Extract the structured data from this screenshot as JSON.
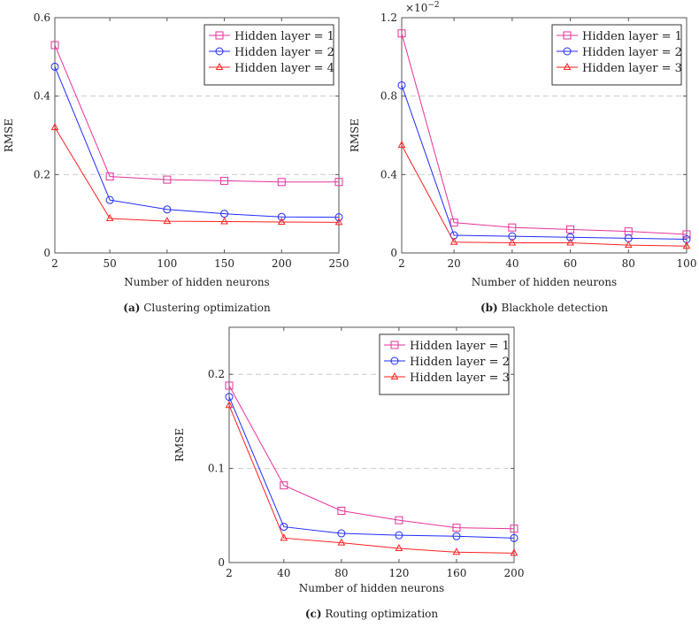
{
  "chart_data": [
    {
      "type": "line",
      "caption_label": "(a)",
      "caption": "Clustering optimization",
      "xlabel": "Number of hidden neurons",
      "ylabel": "RMSE",
      "x": [
        2,
        50,
        100,
        150,
        200,
        250
      ],
      "xticks": [
        "2",
        "50",
        "100",
        "150",
        "200",
        "250"
      ],
      "xlim": [
        2,
        250
      ],
      "yticks": [
        "0",
        "0.2",
        "0.4",
        "0.6"
      ],
      "ytick_values": [
        0,
        0.2,
        0.4,
        0.6
      ],
      "ylim": [
        0,
        0.6
      ],
      "grid": "horizontal dashed",
      "legend_position": "top-right",
      "series": [
        {
          "name": "Hidden layer = 1",
          "marker": "square",
          "color": "#e6329b",
          "values": [
            0.53,
            0.195,
            0.187,
            0.184,
            0.181,
            0.181
          ]
        },
        {
          "name": "Hidden layer = 2",
          "marker": "circle",
          "color": "#1f2cff",
          "values": [
            0.475,
            0.135,
            0.111,
            0.1,
            0.092,
            0.091
          ]
        },
        {
          "name": "Hidden layer = 4",
          "marker": "triangle",
          "color": "#ff2020",
          "values": [
            0.32,
            0.088,
            0.081,
            0.08,
            0.079,
            0.078
          ]
        }
      ]
    },
    {
      "type": "line",
      "caption_label": "(b)",
      "caption": "Blackhole detection",
      "xlabel": "Number of hidden neurons",
      "ylabel": "RMSE",
      "scale_label": "×10",
      "scale_exp": "−2",
      "x": [
        2,
        20,
        40,
        60,
        80,
        100
      ],
      "xticks": [
        "2",
        "20",
        "40",
        "60",
        "80",
        "100"
      ],
      "xlim": [
        2,
        100
      ],
      "yticks": [
        "0",
        "0.4",
        "0.8",
        "1.2"
      ],
      "ytick_values": [
        0,
        0.4,
        0.8,
        1.2
      ],
      "ylim": [
        0,
        1.2
      ],
      "grid": "horizontal dashed",
      "legend_position": "top-right",
      "series": [
        {
          "name": "Hidden layer = 1",
          "marker": "square",
          "color": "#e6329b",
          "values": [
            1.12,
            0.155,
            0.13,
            0.12,
            0.11,
            0.095
          ]
        },
        {
          "name": "Hidden layer = 2",
          "marker": "circle",
          "color": "#1f2cff",
          "values": [
            0.855,
            0.09,
            0.085,
            0.08,
            0.075,
            0.07
          ]
        },
        {
          "name": "Hidden layer = 3",
          "marker": "triangle",
          "color": "#ff2020",
          "values": [
            0.55,
            0.055,
            0.052,
            0.052,
            0.04,
            0.035
          ]
        }
      ]
    },
    {
      "type": "line",
      "caption_label": "(c)",
      "caption": "Routing optimization",
      "xlabel": "Number of hidden neurons",
      "ylabel": "RMSE",
      "x": [
        2,
        40,
        80,
        120,
        160,
        200
      ],
      "xticks": [
        "2",
        "40",
        "80",
        "120",
        "160",
        "200"
      ],
      "xlim": [
        2,
        200
      ],
      "yticks": [
        "0",
        "0.1",
        "0.2"
      ],
      "ytick_values": [
        0,
        0.1,
        0.2
      ],
      "ylim": [
        0,
        0.25
      ],
      "grid": "horizontal dashed",
      "legend_position": "top-right",
      "series": [
        {
          "name": "Hidden layer = 1",
          "marker": "square",
          "color": "#e6329b",
          "values": [
            0.188,
            0.082,
            0.055,
            0.045,
            0.037,
            0.036
          ]
        },
        {
          "name": "Hidden layer = 2",
          "marker": "circle",
          "color": "#1f2cff",
          "values": [
            0.176,
            0.038,
            0.031,
            0.029,
            0.028,
            0.026
          ]
        },
        {
          "name": "Hidden layer = 3",
          "marker": "triangle",
          "color": "#ff2020",
          "values": [
            0.167,
            0.026,
            0.021,
            0.015,
            0.011,
            0.01
          ]
        }
      ]
    }
  ]
}
